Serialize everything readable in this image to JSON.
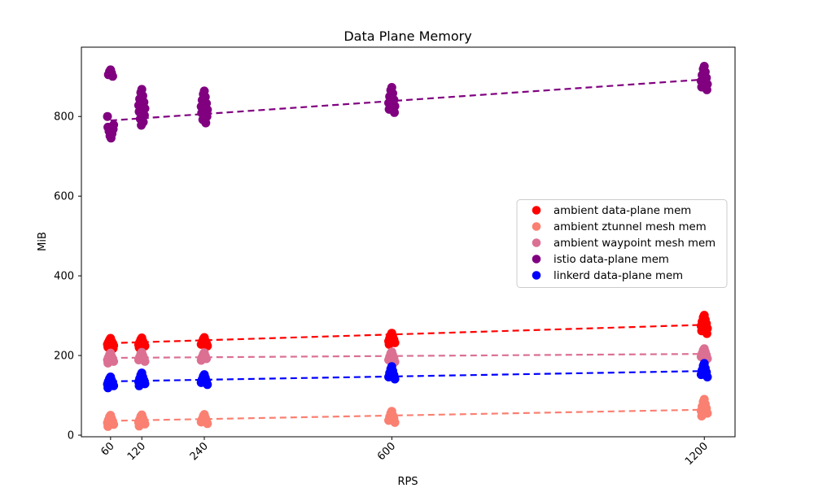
{
  "chart_data": {
    "type": "scatter",
    "title": "Data Plane Memory",
    "xlabel": "RPS",
    "ylabel": "MiB",
    "x_ticks": [
      60,
      120,
      240,
      600,
      1200
    ],
    "y_ticks": [
      0,
      200,
      400,
      600,
      800
    ],
    "xlim": [
      4,
      1259
    ],
    "ylim": [
      -4,
      974
    ],
    "grid": false,
    "legend_position": "center right",
    "marker": "circle",
    "trend_style": "dashed",
    "series": [
      {
        "name": "ambient data-plane mem",
        "color": "#ff0000",
        "points": {
          "60": [
            243,
            239,
            236,
            233,
            231,
            228,
            225,
            221,
            218
          ],
          "120": [
            244,
            240,
            236,
            233,
            230,
            227,
            224,
            220
          ],
          "240": [
            245,
            241,
            237,
            234,
            231,
            228,
            224
          ],
          "600": [
            256,
            251,
            247,
            243,
            240,
            236,
            232,
            228
          ],
          "1200": [
            301,
            296,
            290,
            285,
            280,
            274,
            268,
            262,
            255
          ]
        },
        "trend": {
          "x": [
            60,
            1200
          ],
          "y": [
            231,
            277
          ]
        }
      },
      {
        "name": "ambient ztunnel mesh mem",
        "color": "#fa8072",
        "points": {
          "60": [
            50,
            46,
            42,
            38,
            35,
            31,
            27,
            22
          ],
          "120": [
            51,
            47,
            43,
            39,
            36,
            32,
            28,
            23
          ],
          "240": [
            52,
            48,
            44,
            40,
            37,
            33,
            29
          ],
          "600": [
            60,
            55,
            50,
            46,
            42,
            37,
            32
          ],
          "1200": [
            90,
            84,
            78,
            72,
            67,
            61,
            55,
            48
          ]
        },
        "trend": {
          "x": [
            60,
            1200
          ],
          "y": [
            36,
            64
          ]
        }
      },
      {
        "name": "ambient waypoint mesh mem",
        "color": "#db7093",
        "points": {
          "60": [
            206,
            202,
            198,
            195,
            192,
            189,
            185,
            181
          ],
          "120": [
            208,
            204,
            200,
            196,
            193,
            189,
            185
          ],
          "240": [
            207,
            203,
            199,
            196,
            192,
            188
          ],
          "600": [
            209,
            205,
            201,
            197,
            193,
            189,
            184
          ],
          "1200": [
            217,
            213,
            209,
            205,
            201,
            197,
            192
          ]
        },
        "trend": {
          "x": [
            60,
            1200
          ],
          "y": [
            194,
            204
          ]
        }
      },
      {
        "name": "istio data-plane mem",
        "color": "#800080",
        "points": {
          "60": [
            917,
            913,
            909,
            905,
            901,
            800,
            779,
            773,
            768,
            763,
            757,
            751,
            746
          ],
          "120": [
            868,
            860,
            852,
            844,
            836,
            828,
            820,
            812,
            803,
            794,
            786,
            778
          ],
          "240": [
            864,
            856,
            849,
            841,
            833,
            825,
            817,
            809,
            800,
            792,
            784
          ],
          "600": [
            873,
            866,
            858,
            850,
            842,
            834,
            826,
            818,
            810
          ],
          "1200": [
            926,
            919,
            912,
            904,
            897,
            889,
            881,
            874,
            867
          ]
        },
        "trend": {
          "x": [
            60,
            1200
          ],
          "y": [
            790,
            893
          ]
        }
      },
      {
        "name": "linkerd data-plane mem",
        "color": "#0000ff",
        "points": {
          "60": [
            146,
            142,
            138,
            135,
            132,
            128,
            124,
            119
          ],
          "120": [
            156,
            151,
            146,
            142,
            138,
            134,
            129,
            124
          ],
          "240": [
            152,
            148,
            144,
            140,
            136,
            132,
            127
          ],
          "600": [
            172,
            166,
            161,
            156,
            151,
            146,
            141
          ],
          "1200": [
            180,
            174,
            168,
            163,
            158,
            152,
            146
          ]
        },
        "trend": {
          "x": [
            60,
            1200
          ],
          "y": [
            135,
            161
          ]
        }
      }
    ]
  }
}
